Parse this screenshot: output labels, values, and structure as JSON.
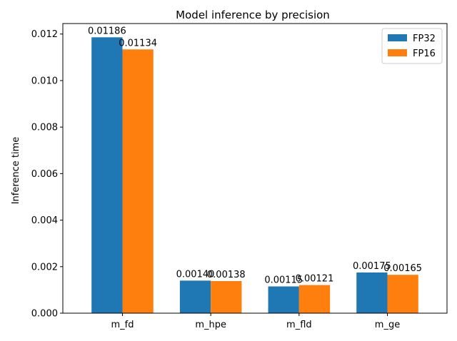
{
  "chart_data": {
    "type": "bar",
    "title": "Model inference by precision",
    "xlabel": "",
    "ylabel": "Inference time",
    "categories": [
      "m_fd",
      "m_hpe",
      "m_fld",
      "m_ge"
    ],
    "series": [
      {
        "name": "FP32",
        "color": "#1f77b4",
        "values": [
          0.01186,
          0.0014,
          0.00115,
          0.00175
        ],
        "labels": [
          "0.01186",
          "0.00140",
          "0.00115",
          "0.00175"
        ]
      },
      {
        "name": "FP16",
        "color": "#ff7f0e",
        "values": [
          0.01134,
          0.00138,
          0.00121,
          0.00165
        ],
        "labels": [
          "0.01134",
          "0.00138",
          "0.00121",
          "0.00165"
        ]
      }
    ],
    "ylim": [
      0,
      0.012452
    ],
    "yticks": [
      0.0,
      0.002,
      0.004,
      0.006,
      0.008,
      0.01,
      0.012
    ],
    "ytick_labels": [
      "0.000",
      "0.002",
      "0.004",
      "0.006",
      "0.008",
      "0.010",
      "0.012"
    ],
    "legend_position": "top-right",
    "grid": false
  }
}
